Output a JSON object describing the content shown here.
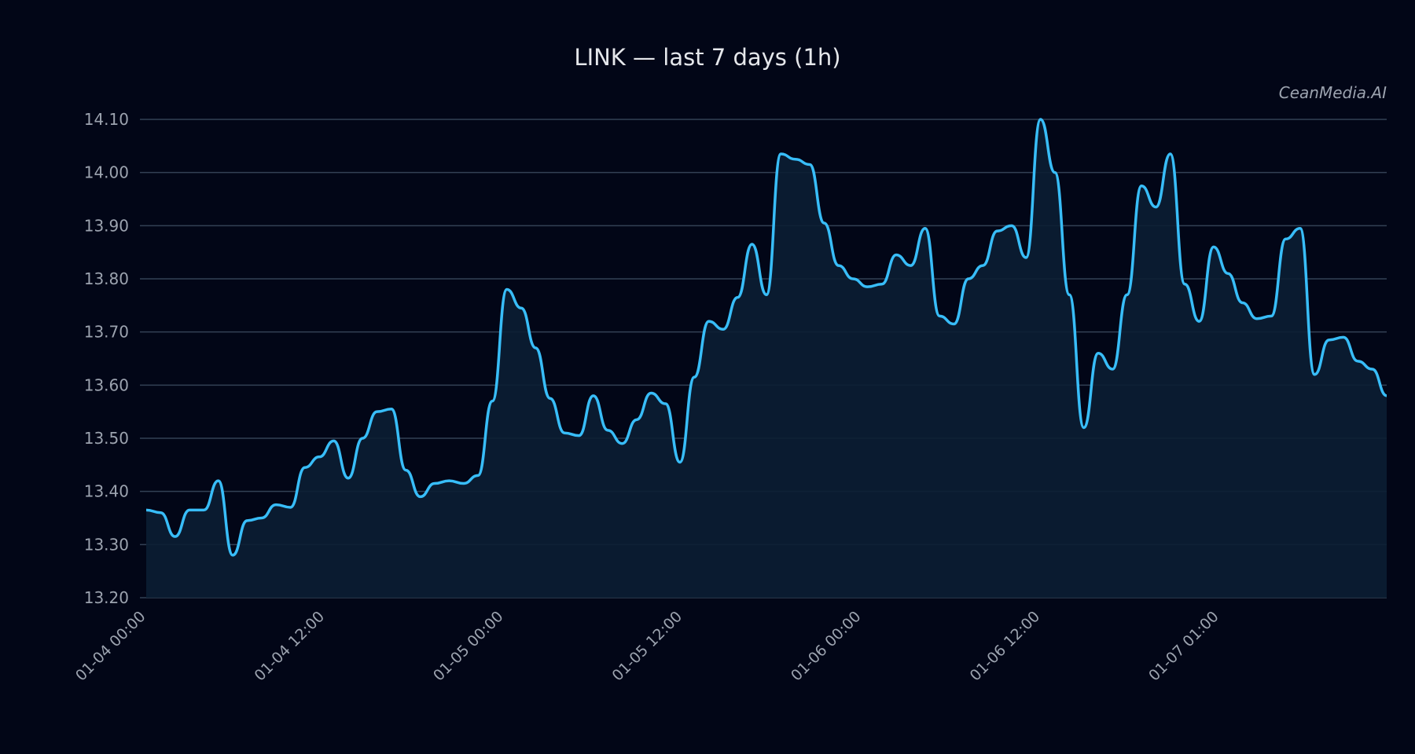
{
  "title": "LINK — last 7 days (1h)",
  "watermark": "CeanMedia.AI",
  "colors": {
    "background": "#020617",
    "line": "#38bdf8",
    "fill": "#0b1e33",
    "grid": "#334155",
    "tick_text": "#9ca3af",
    "title_text": "#e5e7eb"
  },
  "chart_data": {
    "type": "area",
    "title": "LINK — last 7 days (1h)",
    "xlabel": "",
    "ylabel": "",
    "ylim": [
      13.2,
      14.1
    ],
    "yticks": [
      "13.20",
      "13.30",
      "13.40",
      "13.50",
      "13.60",
      "13.70",
      "13.80",
      "13.90",
      "14.00",
      "14.10"
    ],
    "xtick_labels": [
      {
        "index": 0,
        "label": "01-04 00:00"
      },
      {
        "index": 12.4,
        "label": "01-04 12:00"
      },
      {
        "index": 24.8,
        "label": "01-05 00:00"
      },
      {
        "index": 37.2,
        "label": "01-05 12:00"
      },
      {
        "index": 49.6,
        "label": "01-06 00:00"
      },
      {
        "index": 62.0,
        "label": "01-06 12:00"
      },
      {
        "index": 74.4,
        "label": "01-07 01:00"
      }
    ],
    "grid": true,
    "legend": null,
    "series": [
      {
        "name": "LINK",
        "values": [
          13.365,
          13.36,
          13.315,
          13.365,
          13.365,
          13.42,
          13.28,
          13.345,
          13.35,
          13.375,
          13.37,
          13.445,
          13.465,
          13.495,
          13.425,
          13.5,
          13.55,
          13.555,
          13.44,
          13.39,
          13.415,
          13.42,
          13.415,
          13.43,
          13.57,
          13.78,
          13.745,
          13.67,
          13.575,
          13.51,
          13.505,
          13.58,
          13.515,
          13.49,
          13.535,
          13.585,
          13.565,
          13.455,
          13.615,
          13.72,
          13.705,
          13.765,
          13.865,
          13.77,
          14.035,
          14.025,
          14.015,
          13.905,
          13.825,
          13.8,
          13.785,
          13.79,
          13.845,
          13.825,
          13.895,
          13.73,
          13.715,
          13.8,
          13.825,
          13.89,
          13.9,
          13.84,
          14.1,
          14.0,
          13.77,
          13.52,
          13.66,
          13.63,
          13.77,
          13.975,
          13.935,
          14.035,
          13.79,
          13.72,
          13.86,
          13.81,
          13.755,
          13.725,
          13.73,
          13.875,
          13.895,
          13.62,
          13.685,
          13.69,
          13.645,
          13.63,
          13.58
        ]
      }
    ]
  }
}
